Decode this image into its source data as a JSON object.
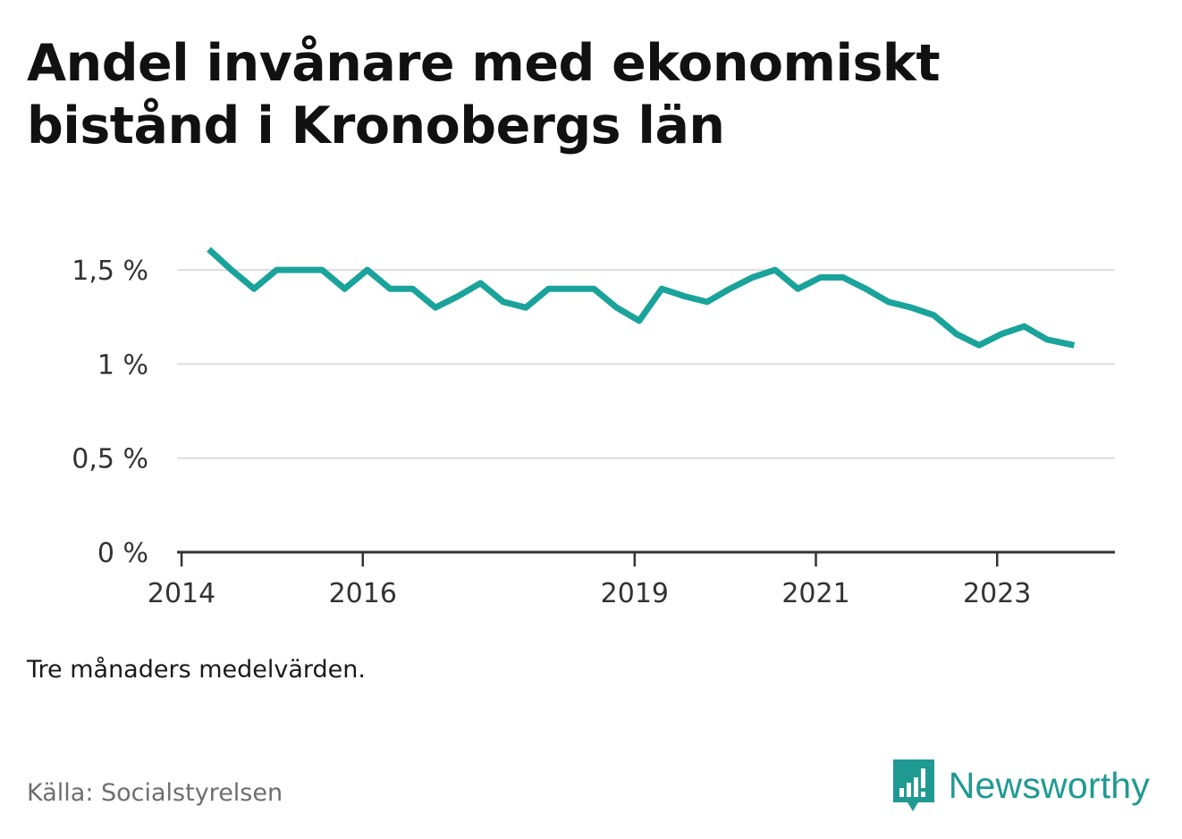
{
  "title": "Andel invånare med ekonomiskt bistånd i Kronobergs län",
  "note": "Tre månaders medelvärden.",
  "source": "Källa: Socialstyrelsen",
  "brand": {
    "name": "Newsworthy",
    "logo_icon": "newsworthy-logo-icon",
    "color": "#1f9a92"
  },
  "colors": {
    "line": "#1aa39a",
    "grid": "#dddddd",
    "axis": "#333333"
  },
  "chart_data": {
    "type": "line",
    "title": "Andel invånare med ekonomiskt bistånd i Kronobergs län",
    "xlabel": "",
    "ylabel": "",
    "grid": true,
    "xlim": [
      2013.95,
      2024.3
    ],
    "ylim": [
      0,
      1.7
    ],
    "x_ticks": [
      {
        "value": 2014,
        "label": "2014"
      },
      {
        "value": 2016,
        "label": "2016"
      },
      {
        "value": 2019,
        "label": "2019"
      },
      {
        "value": 2021,
        "label": "2021"
      },
      {
        "value": 2023,
        "label": "2023"
      }
    ],
    "y_ticks": [
      {
        "value": 0,
        "label": "0 %"
      },
      {
        "value": 0.5,
        "label": "0,5 %"
      },
      {
        "value": 1,
        "label": "1 %"
      },
      {
        "value": 1.5,
        "label": "1,5 %"
      }
    ],
    "series": [
      {
        "x": [
          2014.3,
          2014.55,
          2014.8,
          2015.05,
          2015.3,
          2015.55,
          2015.8,
          2016.05,
          2016.3,
          2016.55,
          2016.8,
          2017.05,
          2017.3,
          2017.55,
          2017.8,
          2018.05,
          2018.3,
          2018.55,
          2018.8,
          2019.05,
          2019.3,
          2019.55,
          2019.8,
          2020.05,
          2020.3,
          2020.55,
          2020.8,
          2021.05,
          2021.3,
          2021.55,
          2021.8,
          2022.05,
          2022.3,
          2022.55,
          2022.8,
          2023.05,
          2023.3,
          2023.55,
          2023.85
        ],
        "values": [
          1.61,
          1.5,
          1.4,
          1.5,
          1.5,
          1.5,
          1.4,
          1.5,
          1.4,
          1.4,
          1.3,
          1.36,
          1.43,
          1.33,
          1.3,
          1.4,
          1.4,
          1.4,
          1.3,
          1.23,
          1.4,
          1.36,
          1.33,
          1.4,
          1.46,
          1.5,
          1.4,
          1.46,
          1.46,
          1.4,
          1.33,
          1.3,
          1.26,
          1.16,
          1.1,
          1.16,
          1.2,
          1.13,
          1.1
        ]
      }
    ]
  }
}
